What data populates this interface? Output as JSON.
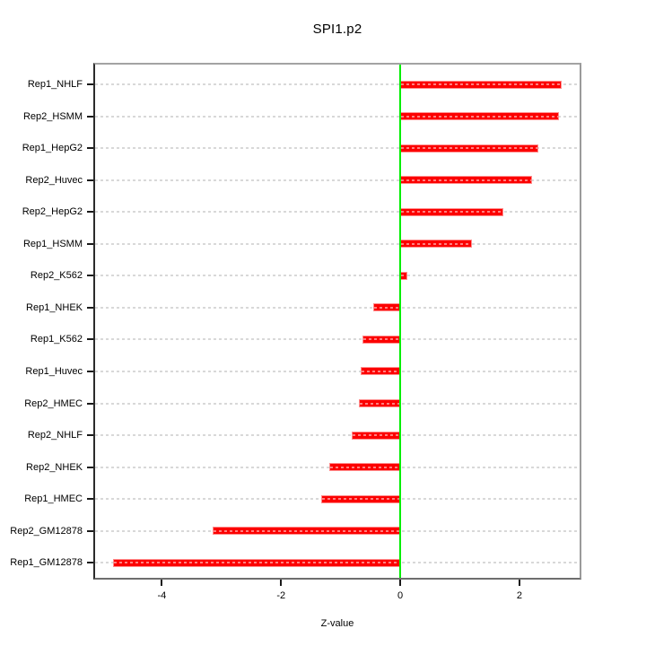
{
  "chart_data": {
    "type": "bar",
    "orientation": "horizontal",
    "title": "SPI1.p2",
    "xlabel": "Z-value",
    "ylabel": "",
    "categories": [
      "Rep1_NHLF",
      "Rep2_HSMM",
      "Rep1_HepG2",
      "Rep2_Huvec",
      "Rep2_HepG2",
      "Rep1_HSMM",
      "Rep2_K562",
      "Rep1_NHEK",
      "Rep1_K562",
      "Rep1_Huvec",
      "Rep2_HMEC",
      "Rep2_NHLF",
      "Rep2_NHEK",
      "Rep1_HMEC",
      "Rep2_GM12878",
      "Rep1_GM12878"
    ],
    "values": [
      2.71,
      2.67,
      2.32,
      2.21,
      1.73,
      1.2,
      0.12,
      -0.46,
      -0.63,
      -0.67,
      -0.7,
      -0.82,
      -1.19,
      -1.32,
      -3.15,
      -4.82
    ],
    "xlim": [
      -5.12,
      3.01
    ],
    "xticks": [
      -4,
      -2,
      0,
      2
    ],
    "xtick_labels": [
      "-4",
      "-2",
      "0",
      "2"
    ],
    "grid": "dashed-horizontal-per-category",
    "legend": null,
    "reference_line_x": 0,
    "colors": {
      "bar": "#fc0000",
      "bar_border": "#ff8d8d",
      "bar_inner_dash": "rgba(255,255,255,0.5)",
      "reference_line": "#00ee00",
      "grid": "#d8d8d8",
      "box": "#9a9a9a",
      "text": "#000000"
    }
  }
}
